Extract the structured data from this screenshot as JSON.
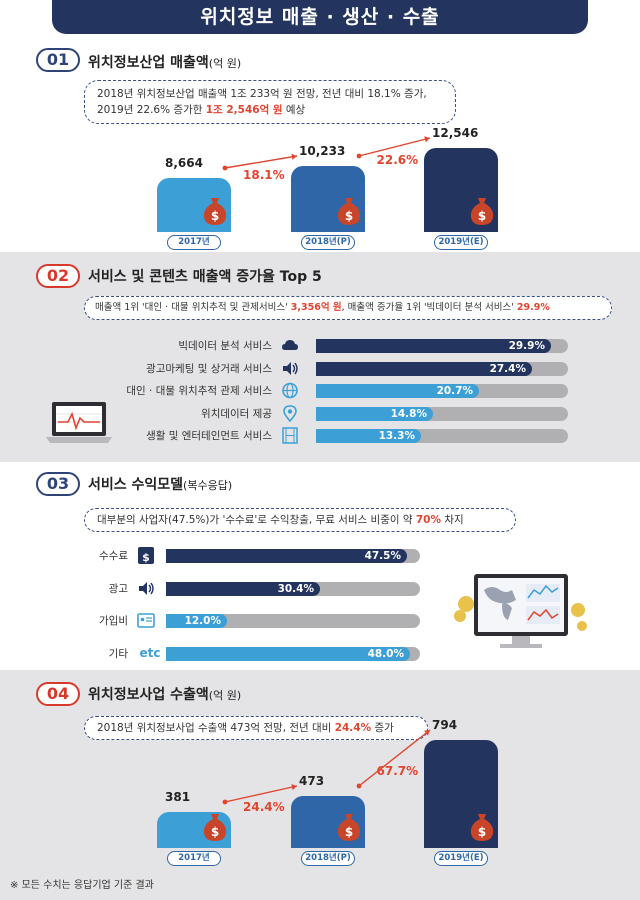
{
  "title": "위치정보 매출 · 생산 · 수출",
  "sections": [
    {
      "num": "01",
      "title": "위치정보산업 매출액",
      "title_sub": "(억 원)",
      "summary_1": "2018년 위치정보산업 매출액 1조 233억 원 전망, 전년 대비 18.1% 증가,",
      "summary_2a": "2019년 22.6% 증가한 ",
      "summary_2b": "1조 2,546억 원",
      "summary_2c": " 예상"
    },
    {
      "num": "02",
      "title": "서비스 및 콘텐츠 매출액 증가율 Top 5",
      "summary_a": "매출액 1위 '대인 · 대물 위치추적 및 관제서비스' ",
      "summary_b": "3,356억 원",
      "summary_c": ", 매출액 증가율 1위 '빅데이터 분석 서비스' ",
      "summary_d": "29.9%"
    },
    {
      "num": "03",
      "title": "서비스 수익모델",
      "title_sub": "(복수응답)",
      "summary_a": "대부분의 사업자(47.5%)가 '수수료'로 수익창출, 무료 서비스 비중이 약 ",
      "summary_b": "70%",
      "summary_c": " 차지"
    },
    {
      "num": "04",
      "title": "위치정보사업 수출액",
      "title_sub": "(억 원)",
      "summary_a": "2018년 위치정보사업 수출액 473억 전망, 전년 대비 ",
      "summary_b": "24.4%",
      "summary_c": " 증가"
    }
  ],
  "footnote": "※ 모든 수치는 응답기업 기준 결과",
  "colors": {
    "navy": "#23345f",
    "mid": "#2e66a8",
    "light": "#3ca0d6",
    "red": "#e0452e",
    "bag": "#c8452a"
  },
  "chart_data": [
    {
      "type": "bar",
      "title": "위치정보산업 매출액",
      "categories": [
        "2017년",
        "2018년(P)",
        "2019년(E)"
      ],
      "values": [
        8664,
        10233,
        12546
      ],
      "value_labels": [
        "8,664",
        "10,233",
        "12,546"
      ],
      "growth_labels": [
        "18.1%",
        "22.6%"
      ]
    },
    {
      "type": "bar",
      "orientation": "horizontal",
      "title": "서비스 및 콘텐츠 매출액 증가율 Top 5",
      "categories": [
        "빅데이터 분석 서비스",
        "광고마케팅 및 상거래 서비스",
        "대인 · 대물 위치추적 관제 서비스",
        "위치데이터 제공",
        "생활 및 엔터테인먼트 서비스"
      ],
      "values": [
        29.9,
        27.4,
        20.7,
        14.8,
        13.3
      ],
      "value_labels": [
        "29.9%",
        "27.4%",
        "20.7%",
        "14.8%",
        "13.3%"
      ],
      "icons": [
        "cloud-icon",
        "speaker-icon",
        "globe-icon",
        "location-pin-icon",
        "film-icon"
      ]
    },
    {
      "type": "bar",
      "orientation": "horizontal",
      "title": "서비스 수익모델",
      "categories": [
        "수수료",
        "광고",
        "가입비",
        "기타"
      ],
      "values": [
        47.5,
        30.4,
        12.0,
        48.0
      ],
      "value_labels": [
        "47.5%",
        "30.4%",
        "12.0%",
        "48.0%"
      ],
      "icons": [
        "money-bag-icon",
        "speaker-icon",
        "id-card-icon",
        "etc-icon"
      ],
      "etc_icon_text": "etc"
    },
    {
      "type": "bar",
      "title": "위치정보사업 수출액",
      "categories": [
        "2017년",
        "2018년(P)",
        "2019년(E)"
      ],
      "values": [
        381,
        473,
        794
      ],
      "value_labels": [
        "381",
        "473",
        "794"
      ],
      "growth_labels": [
        "24.4%",
        "67.7%"
      ]
    }
  ]
}
